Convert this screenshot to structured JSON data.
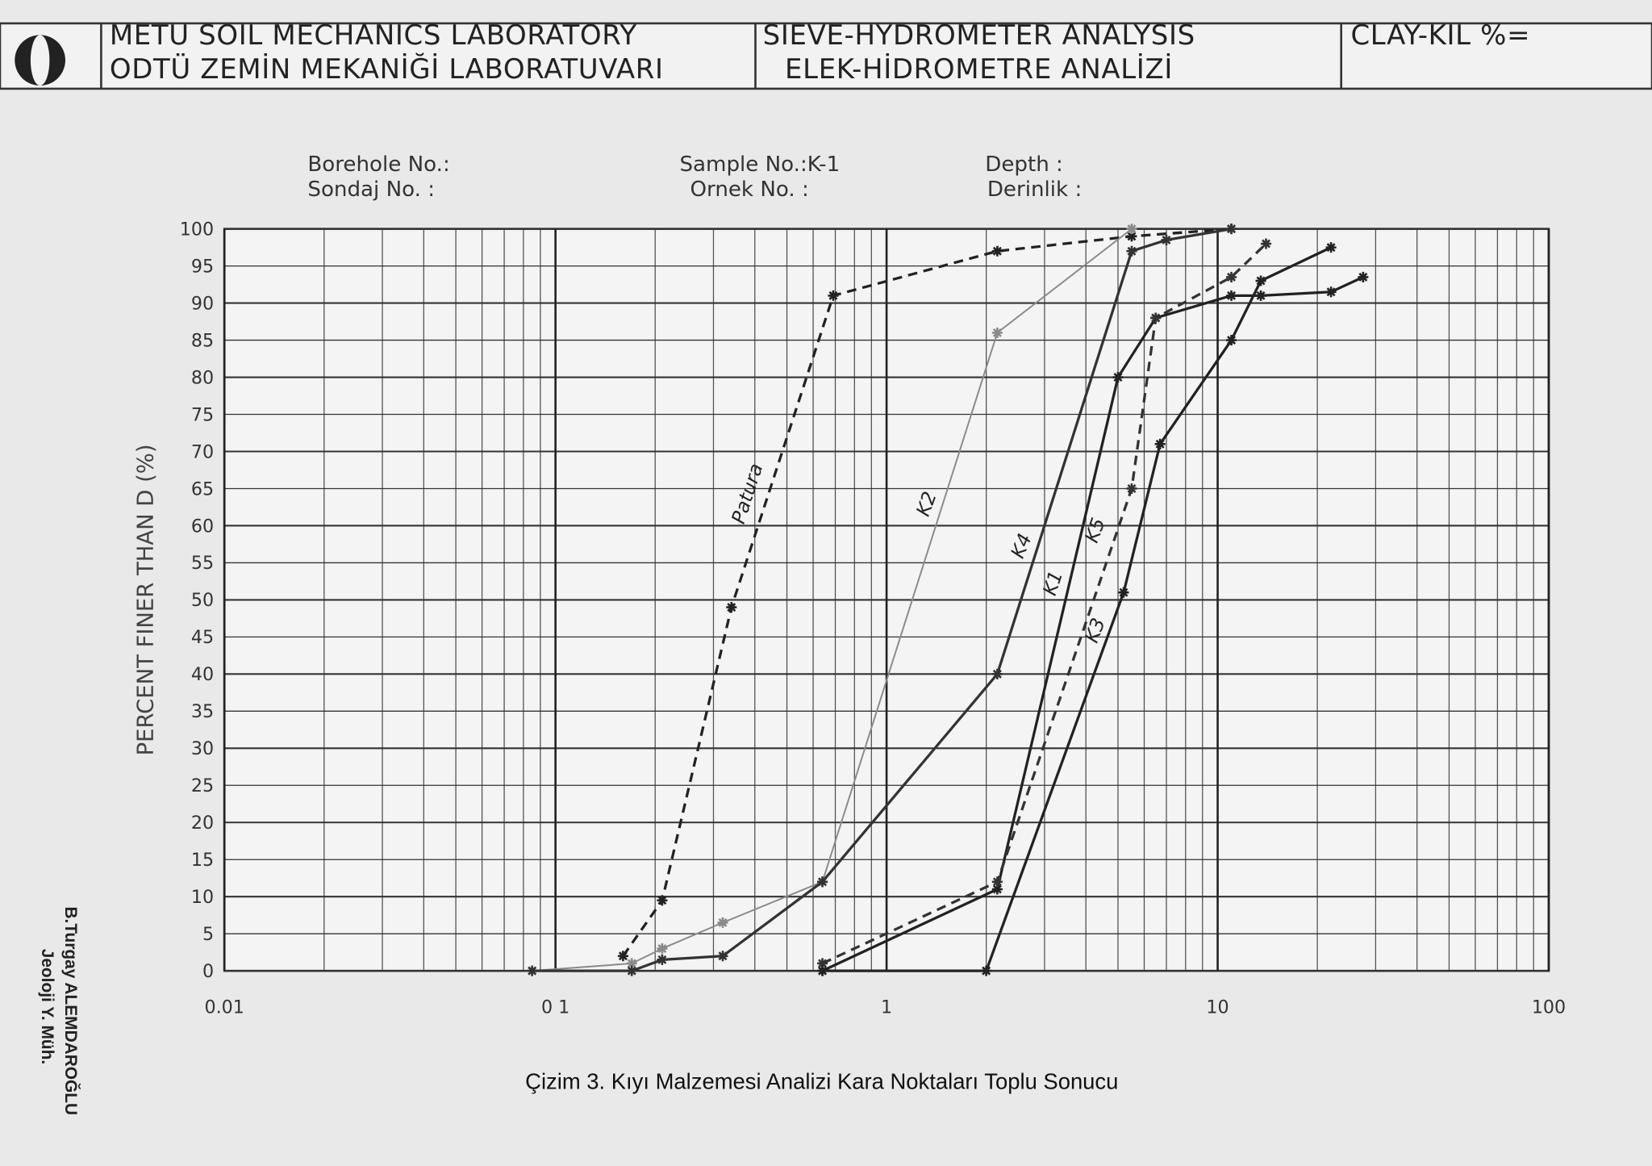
{
  "header": {
    "lab_en": "METU SOIL MECHANICS LABORATORY",
    "lab_tr": "ODTÜ ZEMİN MEKANİĞİ LABORATUVARI",
    "analysis_en": "SIEVE-HYDROMETER ANALYSIS",
    "analysis_tr": "ELEK-HİDROMETRE ANALİZİ",
    "clay": "CLAY-KIL %="
  },
  "fields": {
    "borehole": "Borehole No.:",
    "sondaj": "Sondaj No.    :",
    "sample": "Sample No.:K-1",
    "ornek": "Ornek No. :",
    "depth": "Depth        :",
    "derinlik": "Derinlik  :"
  },
  "signature": {
    "name": "B.Turgay ALEMDAROĞLU",
    "title": "Jeoloji Y. Müh."
  },
  "chart_data": {
    "type": "line",
    "caption": "Çizim 3.  Kıyı Malzemesi Analizi Kara Noktaları Toplu Sonucu",
    "y_label": "PERCENT FINER THAN  D  (%)",
    "log_x": true,
    "grid": true,
    "xlim": [
      0.01,
      100
    ],
    "xticks": [
      {
        "value": 0.01,
        "label": "0.01"
      },
      {
        "value": 0.1,
        "label": "0 1"
      },
      1,
      10,
      100
    ],
    "ylim": [
      0,
      100
    ],
    "yticks": [
      0,
      5,
      10,
      15,
      20,
      25,
      30,
      35,
      40,
      45,
      50,
      55,
      60,
      65,
      70,
      75,
      80,
      85,
      90,
      95,
      100
    ],
    "series": [
      {
        "name": "Patura",
        "color": "#222222",
        "dashed": true,
        "x": [
          0.16,
          0.21,
          0.34,
          0.69,
          2.16,
          5.5,
          11
        ],
        "values": [
          2,
          9.5,
          49,
          91,
          97,
          99,
          100
        ]
      },
      {
        "name": "K2",
        "color": "#8a8a8a",
        "dashed": false,
        "x": [
          0.085,
          0.17,
          0.21,
          0.32,
          0.64,
          2.16,
          5.5
        ],
        "values": [
          0,
          1,
          3,
          6.5,
          12,
          86,
          100
        ]
      },
      {
        "name": "K4",
        "color": "#333333",
        "dashed": false,
        "x": [
          0.085,
          0.17,
          0.21,
          0.32,
          0.64,
          2.16,
          5.5,
          7,
          11
        ],
        "values": [
          0,
          0,
          1.5,
          2,
          12,
          40,
          97,
          98.5,
          100
        ]
      },
      {
        "name": "K1",
        "color": "#222222",
        "dashed": false,
        "x": [
          0.64,
          2.16,
          5,
          6.5,
          11,
          13.5,
          22,
          27.5
        ],
        "values": [
          0,
          11,
          80,
          88,
          91,
          91,
          91.5,
          93.5
        ]
      },
      {
        "name": "K5",
        "color": "#333333",
        "dashed": true,
        "x": [
          0.64,
          2.16,
          5.5,
          6.5,
          11,
          14
        ],
        "values": [
          1,
          12,
          65,
          88,
          93.5,
          98
        ]
      },
      {
        "name": "K3",
        "color": "#222222",
        "dashed": false,
        "x": [
          0.64,
          2.0,
          5.2,
          6.7,
          11,
          13.5,
          22
        ],
        "values": [
          0,
          0,
          51,
          71,
          85,
          93,
          97.5
        ]
      }
    ]
  }
}
